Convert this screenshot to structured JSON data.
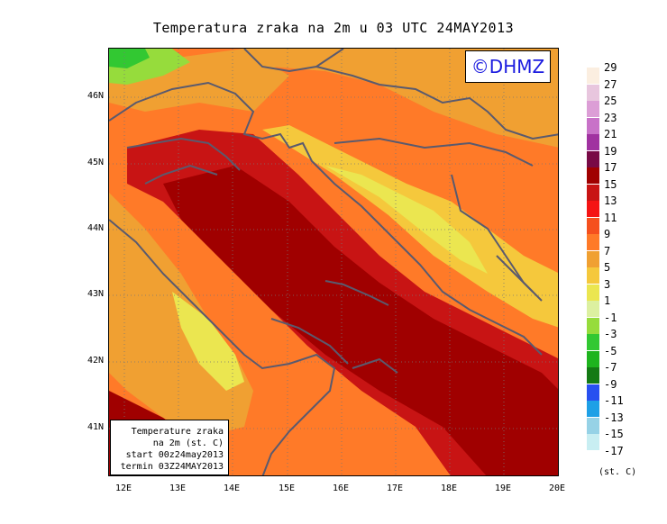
{
  "title": "Temperatura zraka na 2m u 03 UTC 24MAY2013",
  "logo": "©DHMZ",
  "info": {
    "line1": "Temperature zraka",
    "line2": "na 2m (st. C)",
    "line3": "start 00z24may2013",
    "line4": "termin 03Z24MAY2013"
  },
  "lat_labels": [
    "46N",
    "45N",
    "44N",
    "43N",
    "42N",
    "41N"
  ],
  "lon_labels": [
    "12E",
    "13E",
    "14E",
    "15E",
    "16E",
    "17E",
    "18E",
    "19E",
    "20E"
  ],
  "legend": {
    "labels": [
      "29",
      "27",
      "25",
      "23",
      "21",
      "19",
      "17",
      "15",
      "13",
      "11",
      "9",
      "7",
      "5",
      "3",
      "1",
      "-1",
      "-3",
      "-5",
      "-7",
      "-9",
      "-11",
      "-13",
      "-15",
      "-17"
    ],
    "colors": [
      "#fbeee0",
      "#e8c6de",
      "#dc9ed6",
      "#c872c8",
      "#a032a0",
      "#780a46",
      "#a00000",
      "#c81414",
      "#f51414",
      "#f5501e",
      "#ff7a28",
      "#f0a032",
      "#f5c83c",
      "#ebe650",
      "#dcf0a0",
      "#96dc3c",
      "#32c832",
      "#1eb41e",
      "#147a14",
      "#2850f0",
      "#1ea0e6",
      "#96d2e6",
      "#c8eef2",
      "#e6fafa"
    ],
    "units": "(st. C)"
  },
  "icons": {
    "grid": "dotted-lat-lon-grid",
    "coastline": "coastline-border-lines"
  }
}
